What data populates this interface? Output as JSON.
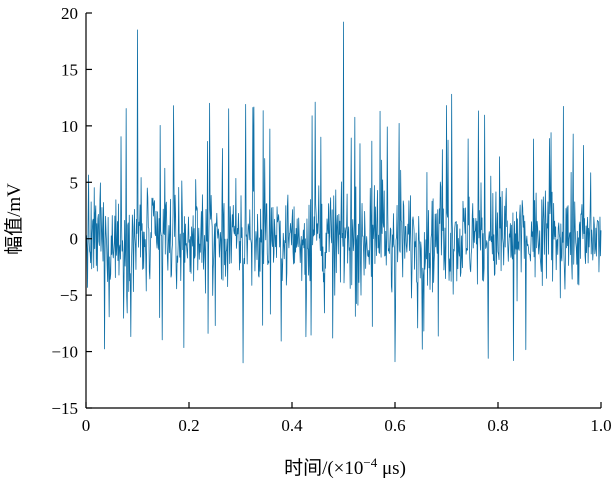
{
  "chart_data": {
    "type": "line",
    "xlabel_prefix": "时间/(×10",
    "xlabel_exponent": "−4",
    "xlabel_suffix": " μs)",
    "ylabel": "幅值/mV",
    "xlim": [
      0,
      1.0
    ],
    "ylim": [
      -15,
      20
    ],
    "xticks": [
      0,
      0.2,
      0.4,
      0.6,
      0.8,
      1.0
    ],
    "xtick_labels": [
      "0",
      "0.2",
      "0.4",
      "0.6",
      "0.8",
      "1.0"
    ],
    "yticks": [
      -15,
      -10,
      -5,
      0,
      5,
      10,
      15,
      20
    ],
    "ytick_labels": [
      "−15",
      "−10",
      "−5",
      "0",
      "5",
      "10",
      "15",
      "20"
    ],
    "grid": false,
    "series_color": "#0e6fa6",
    "series": [
      {
        "description_type": "noise",
        "num_points": 1000,
        "noise_range": [
          -6,
          6
        ],
        "occasional_range": [
          -11,
          12
        ],
        "spikes": [
          {
            "x": 0.1,
            "y": 18.5
          },
          {
            "x": 0.5,
            "y": 19.2
          },
          {
            "x": 0.71,
            "y": 12.8
          },
          {
            "x": 0.7,
            "y": 11.8
          },
          {
            "x": 0.24,
            "y": 12.0
          },
          {
            "x": 0.31,
            "y": 11.9
          },
          {
            "x": 0.445,
            "y": 12.1
          },
          {
            "x": 0.305,
            "y": -11.0
          },
          {
            "x": 0.6,
            "y": -10.9
          },
          {
            "x": 0.83,
            "y": -10.8
          }
        ]
      }
    ]
  }
}
